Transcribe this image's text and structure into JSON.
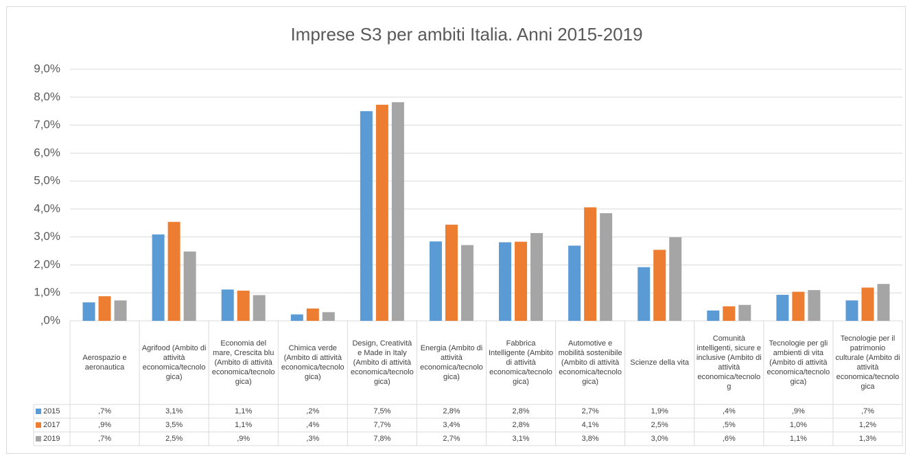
{
  "chart_data": {
    "type": "bar",
    "title": "Imprese S3 per ambiti Italia. Anni 2015-2019",
    "categories": [
      "Aerospazio e aeronautica",
      "Agrifood (Ambito di attività economica/tecnologica)",
      "Economia del mare, Crescita blu (Ambito di attività economica/tecnologica)",
      "Chimica verde (Ambito di attività economica/tecnologica)",
      "Design, Creatività e Made in Italy (Ambito di attività economica/tecnologica)",
      "Energia (Ambito di attività economica/tecnologica)",
      "Fabbrica Intelligente (Ambito di attività economica/tecnologica)",
      "Automotive e mobilità sostenibile (Ambito di attività economica/tecnologica)",
      "Scienze della vita",
      "Comunità intelligenti, sicure e inclusive (Ambito di attività economica/tecnolog",
      "Tecnologie per gli ambienti di vita (Ambito di attività economica/tecnologica)",
      "Tecnologie per il patrimonio culturale (Ambito di attività economica/tecnologica"
    ],
    "series": [
      {
        "name": "2015",
        "color": "#5b9bd5",
        "values": [
          0.66,
          3.09,
          1.12,
          0.23,
          7.5,
          2.84,
          2.81,
          2.69,
          1.92,
          0.37,
          0.93,
          0.73
        ],
        "value_labels": [
          ",7%",
          "3,1%",
          "1,1%",
          ",2%",
          "7,5%",
          "2,8%",
          "2,8%",
          "2,7%",
          "1,9%",
          ",4%",
          ",9%",
          ",7%"
        ]
      },
      {
        "name": "2017",
        "color": "#ed7d31",
        "values": [
          0.88,
          3.54,
          1.08,
          0.44,
          7.73,
          3.44,
          2.83,
          4.06,
          2.54,
          0.52,
          1.04,
          1.19
        ],
        "value_labels": [
          ",9%",
          "3,5%",
          "1,1%",
          ",4%",
          "7,7%",
          "3,4%",
          "2,8%",
          "4,1%",
          "2,5%",
          ",5%",
          "1,0%",
          "1,2%"
        ]
      },
      {
        "name": "2019",
        "color": "#a5a5a5",
        "values": [
          0.73,
          2.48,
          0.92,
          0.31,
          7.82,
          2.71,
          3.14,
          3.85,
          2.99,
          0.57,
          1.1,
          1.32
        ],
        "value_labels": [
          ",7%",
          "2,5%",
          ",9%",
          ",3%",
          "7,8%",
          "2,7%",
          "3,1%",
          "3,8%",
          "3,0%",
          ",6%",
          "1,1%",
          "1,3%"
        ]
      }
    ],
    "ylim": [
      0,
      9
    ],
    "yticks": [
      {
        "value": 0,
        "label": ",0%"
      },
      {
        "value": 1,
        "label": "1,0%"
      },
      {
        "value": 2,
        "label": "2,0%"
      },
      {
        "value": 3,
        "label": "3,0%"
      },
      {
        "value": 4,
        "label": "4,0%"
      },
      {
        "value": 5,
        "label": "5,0%"
      },
      {
        "value": 6,
        "label": "6,0%"
      },
      {
        "value": 7,
        "label": "7,0%"
      },
      {
        "value": 8,
        "label": "8,0%"
      },
      {
        "value": 9,
        "label": "9,0%"
      }
    ],
    "grid": true
  }
}
